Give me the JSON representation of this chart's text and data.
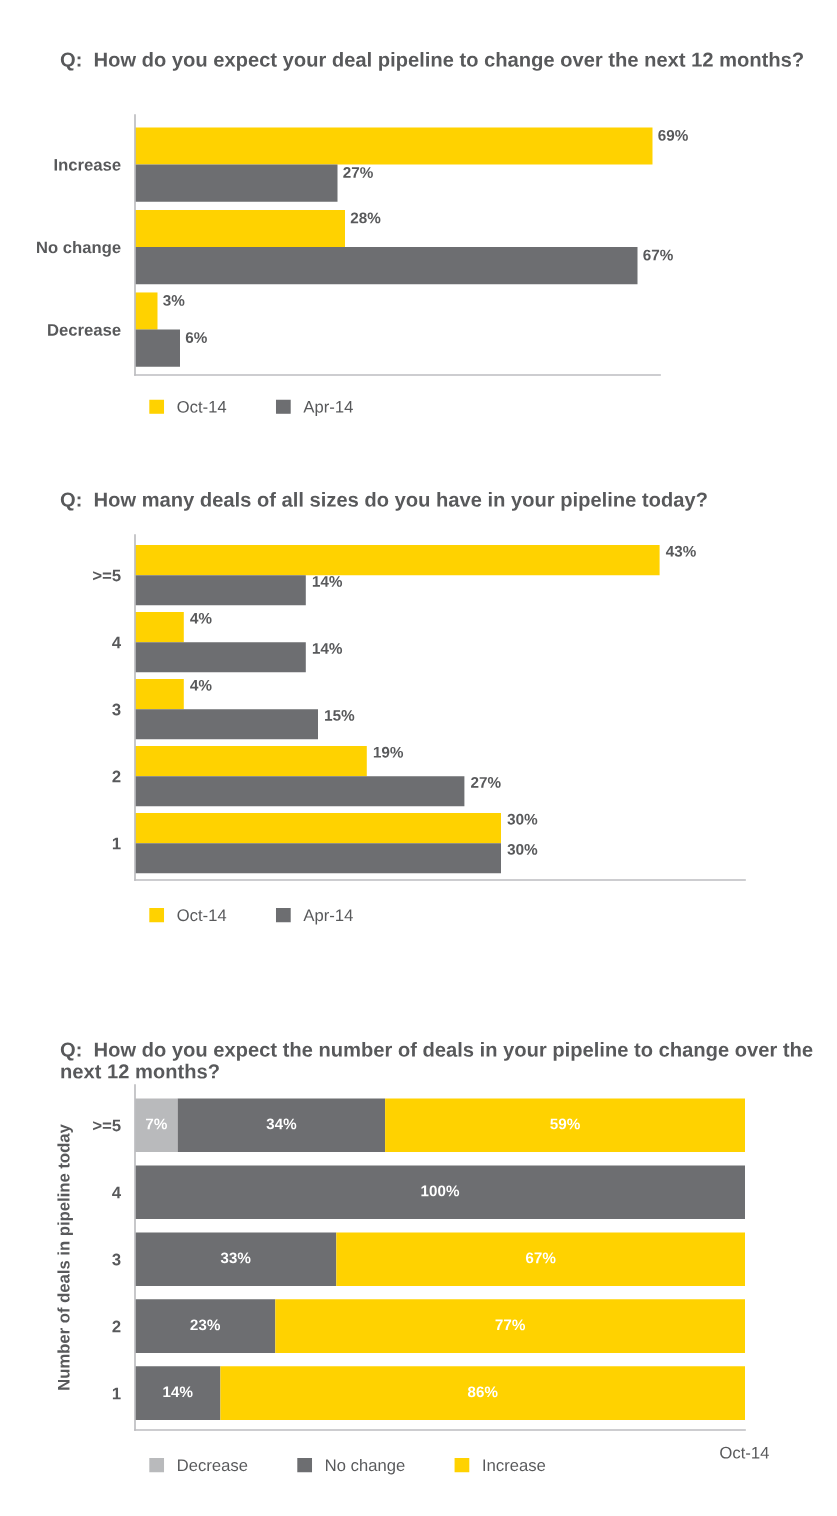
{
  "chart_data": [
    {
      "type": "bar",
      "orientation": "horizontal",
      "title": "Q:  How do you expect your deal pipeline to change over the next 12 months?",
      "categories": [
        "Increase",
        "No change",
        "Decrease"
      ],
      "xlim": [
        0,
        70
      ],
      "tick_labels": "y",
      "legend": "bottom left",
      "series": [
        {
          "name": "Oct-14",
          "color": "#ffd200",
          "values": [
            69,
            28,
            3
          ],
          "value_labels": [
            "69%",
            "28%",
            "3%"
          ]
        },
        {
          "name": "Apr-14",
          "color": "#6d6e71",
          "values": [
            27,
            67,
            6
          ],
          "value_labels": [
            "27%",
            "67%",
            "6%"
          ]
        }
      ]
    },
    {
      "type": "bar",
      "orientation": "horizontal",
      "title": "Q:  How many deals of all sizes do you have in your pipeline today?",
      "categories": [
        ">=5",
        "4",
        "3",
        "2",
        "1"
      ],
      "xlim": [
        0,
        50
      ],
      "tick_labels": "y",
      "legend": "bottom left",
      "series": [
        {
          "name": "Oct-14",
          "color": "#ffd200",
          "values": [
            43,
            4,
            4,
            19,
            30
          ],
          "value_labels": [
            "43%",
            "4%",
            "4%",
            "19%",
            "30%"
          ]
        },
        {
          "name": "Apr-14",
          "color": "#6d6e71",
          "values": [
            14,
            14,
            15,
            27,
            30
          ],
          "value_labels": [
            "14%",
            "14%",
            "15%",
            "27%",
            "30%"
          ]
        }
      ]
    },
    {
      "type": "bar",
      "orientation": "horizontal",
      "stacked": true,
      "title": "Q:  How do you expect the number of deals in your pipeline to change over the next 12 months?",
      "ylabel": "Number of deals in pipeline today",
      "categories": [
        ">=5",
        "4",
        "3",
        "2",
        "1"
      ],
      "xlim": [
        0,
        100
      ],
      "tick_labels": "y",
      "legend": "bottom left",
      "annotations": [
        "Oct-14"
      ],
      "series": [
        {
          "name": "Decrease",
          "color": "#b9babc",
          "values": [
            7,
            null,
            null,
            null,
            null
          ],
          "value_labels": [
            "7%",
            null,
            null,
            null,
            null
          ]
        },
        {
          "name": "No change",
          "color": "#6d6e71",
          "values": [
            34,
            100,
            33,
            23,
            14
          ],
          "value_labels": [
            "34%",
            "100%",
            "33%",
            "23%",
            "14%"
          ]
        },
        {
          "name": "Increase",
          "color": "#ffd200",
          "values": [
            59,
            null,
            67,
            77,
            86
          ],
          "value_labels": [
            "59%",
            null,
            "67%",
            "77%",
            "86%"
          ]
        }
      ]
    }
  ]
}
